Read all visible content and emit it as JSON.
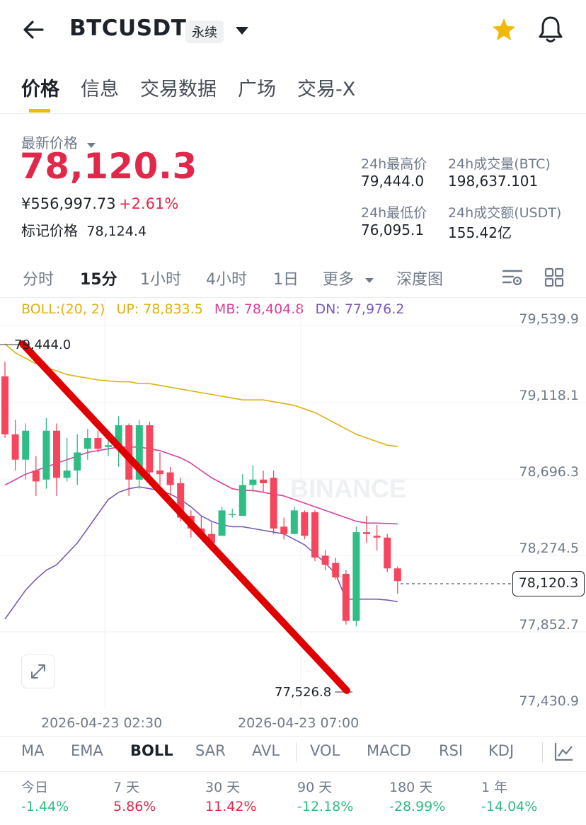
{
  "header": {
    "title": "BTCUSDT",
    "tag": "永续",
    "icons": [
      "back-arrow-icon",
      "chevron-down-icon",
      "star-icon",
      "bell-icon"
    ]
  },
  "tabs": [
    "价格",
    "信息",
    "交易数据",
    "广场",
    "交易-X"
  ],
  "price": {
    "label": "最新价格",
    "last": "78,120.3",
    "cny": "¥556,997.73",
    "change": "+2.61%",
    "mark_label": "标记价格",
    "mark_value": "78,124.4"
  },
  "stats": {
    "high_label": "24h最高价",
    "high": "79,444.0",
    "vol_btc_label": "24h成交量(BTC)",
    "vol_btc": "198,637.101",
    "low_label": "24h最低价",
    "low": "76,095.1",
    "vol_usdt_label": "24h成交额(USDT)",
    "vol_usdt": "155.42亿"
  },
  "intervals": [
    "分时",
    "15分",
    "1小时",
    "4小时",
    "1日",
    "更多",
    "深度图"
  ],
  "boll": {
    "label": "BOLL:(20, 2)",
    "up": "UP: 78,833.5",
    "mb": "MB: 78,404.8",
    "dn": "DN: 77,976.2"
  },
  "chart_data": {
    "type": "candlestick",
    "y_axis_ticks": [
      "79,539.9",
      "79,118.1",
      "78,696.3",
      "78,274.5",
      "77,852.7",
      "77,430.9"
    ],
    "ylim": [
      77430.9,
      79539.9
    ],
    "x_axis_ticks": [
      "2026-04-23 02:30",
      "2026-04-23 07:00"
    ],
    "high_label": "79,444.0",
    "low_label": "77,526.8",
    "current_price_label": "78,120.3",
    "watermark": "BINANCE",
    "candles": [
      [
        79220,
        78900,
        79300,
        78880
      ],
      [
        78900,
        78760,
        78980,
        78700
      ],
      [
        78760,
        78920,
        78960,
        78650
      ],
      [
        78700,
        78640,
        78780,
        78560
      ],
      [
        78650,
        78920,
        78990,
        78600
      ],
      [
        78920,
        78660,
        78960,
        78560
      ],
      [
        78660,
        78700,
        78880,
        78640
      ],
      [
        78700,
        78800,
        78900,
        78620
      ],
      [
        78820,
        78880,
        78930,
        78760
      ],
      [
        78880,
        78820,
        78920,
        78800
      ],
      [
        78830,
        78840,
        78880,
        78780
      ],
      [
        78830,
        78950,
        79000,
        78720
      ],
      [
        78950,
        78650,
        78960,
        78560
      ],
      [
        78650,
        78950,
        78980,
        78600
      ],
      [
        78950,
        78690,
        78970,
        78620
      ],
      [
        78700,
        78680,
        78800,
        78620
      ],
      [
        78690,
        78620,
        78720,
        78560
      ],
      [
        78630,
        78440,
        78660,
        78420
      ],
      [
        78450,
        78380,
        78480,
        78330
      ],
      [
        78380,
        78350,
        78450,
        78320
      ],
      [
        78350,
        78300,
        78420,
        78280
      ],
      [
        78340,
        78480,
        78500,
        78340
      ],
      [
        78460,
        78460,
        78490,
        78440
      ],
      [
        78450,
        78620,
        78680,
        78450
      ],
      [
        78620,
        78650,
        78730,
        78580
      ],
      [
        78650,
        78630,
        78700,
        78580
      ],
      [
        78660,
        78380,
        78700,
        78350
      ],
      [
        78390,
        78350,
        78440,
        78320
      ],
      [
        78350,
        78480,
        78500,
        78350
      ],
      [
        78470,
        78340,
        78480,
        78320
      ],
      [
        78470,
        78220,
        78480,
        78200
      ],
      [
        78230,
        78180,
        78260,
        78150
      ],
      [
        78190,
        78110,
        78220,
        78100
      ],
      [
        78130,
        77870,
        78150,
        77850
      ],
      [
        77870,
        78360,
        78390,
        77840
      ],
      [
        78360,
        78350,
        78450,
        78300
      ],
      [
        78340,
        78330,
        78400,
        78260
      ],
      [
        78330,
        78160,
        78350,
        78140
      ],
      [
        78160,
        78090,
        78170,
        78020
      ]
    ],
    "boll_up": [
      79400,
      79350,
      79320,
      79290,
      79270,
      79250,
      79230,
      79220,
      79210,
      79200,
      79195,
      79190,
      79190,
      79180,
      79180,
      79170,
      79160,
      79150,
      79140,
      79130,
      79120,
      79110,
      79100,
      79090,
      79090,
      79090,
      79080,
      79070,
      79060,
      79040,
      79020,
      78990,
      78960,
      78930,
      78900,
      78880,
      78860,
      78840,
      78833.5
    ],
    "boll_mb": [
      78620,
      78650,
      78680,
      78700,
      78720,
      78740,
      78760,
      78780,
      78800,
      78810,
      78820,
      78830,
      78830,
      78830,
      78820,
      78810,
      78790,
      78770,
      78740,
      78700,
      78660,
      78630,
      78600,
      78590,
      78590,
      78580,
      78570,
      78560,
      78540,
      78520,
      78500,
      78480,
      78460,
      78440,
      78420,
      78410,
      78410,
      78408,
      78404.8
    ],
    "boll_dn": [
      77880,
      77960,
      78040,
      78100,
      78150,
      78180,
      78240,
      78300,
      78380,
      78460,
      78540,
      78580,
      78600,
      78610,
      78600,
      78590,
      78570,
      78540,
      78500,
      78450,
      78420,
      78400,
      78390,
      78390,
      78380,
      78370,
      78360,
      78350,
      78320,
      78290,
      78240,
      78190,
      78130,
      77990,
      77990,
      77990,
      77990,
      77985,
      77976.2
    ]
  },
  "indicators": [
    "MA",
    "EMA",
    "BOLL",
    "SAR",
    "AVL",
    "VOL",
    "MACD",
    "RSI",
    "KDJ"
  ],
  "performance": [
    {
      "label": "今日",
      "value": "-1.44%"
    },
    {
      "label": "7 天",
      "value": "5.86%"
    },
    {
      "label": "30 天",
      "value": "11.42%"
    },
    {
      "label": "90 天",
      "value": "-12.18%"
    },
    {
      "label": "180 天",
      "value": "-28.99%"
    },
    {
      "label": "1 年",
      "value": "-14.04%"
    }
  ],
  "colors": {
    "up": "#2ebd85",
    "down": "#f6465d",
    "price_red": "#e0294a",
    "boll_up": "#e0b010",
    "boll_mb": "#d63fa0",
    "boll_dn": "#7a5bb5",
    "accent": "#f0b90b"
  }
}
